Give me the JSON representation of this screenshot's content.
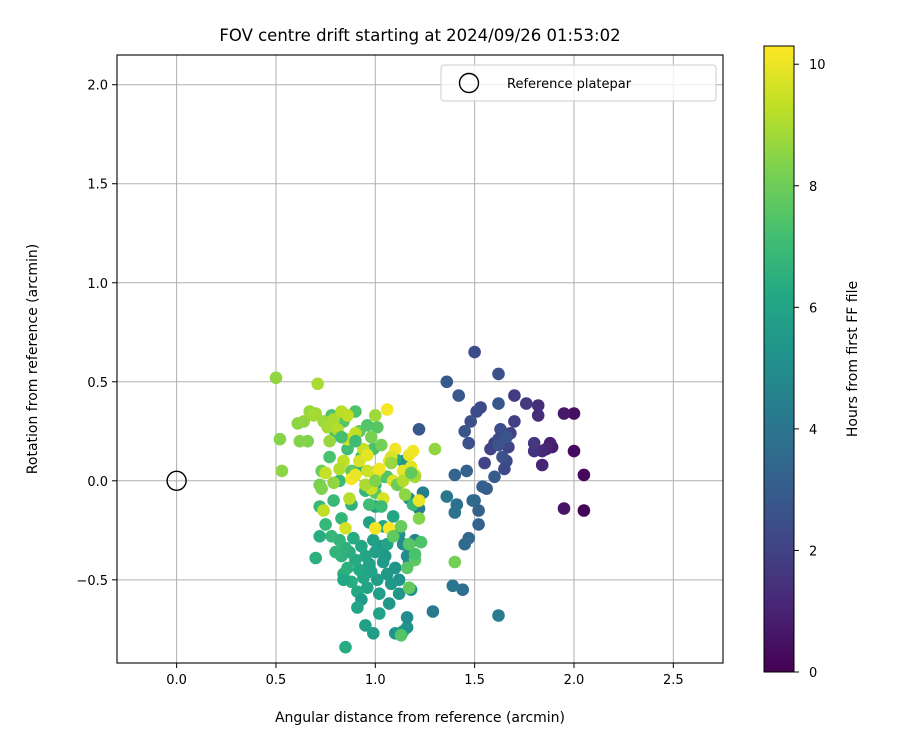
{
  "chart_data": {
    "type": "scatter",
    "title": "FOV centre drift starting at 2024/09/26 01:53:02",
    "xlabel": "Angular distance from reference (arcmin)",
    "ylabel": "Rotation from reference (arcmin)",
    "xlim": [
      -0.3,
      2.75
    ],
    "ylim": [
      -0.92,
      2.15
    ],
    "xticks": [
      0.0,
      0.5,
      1.0,
      1.5,
      2.0,
      2.5
    ],
    "xtick_labels": [
      "0.0",
      "0.5",
      "1.0",
      "1.5",
      "2.0",
      "2.5"
    ],
    "yticks": [
      -0.5,
      0.0,
      0.5,
      1.0,
      1.5,
      2.0
    ],
    "ytick_labels": [
      "−0.5",
      "0.0",
      "0.5",
      "1.0",
      "1.5",
      "2.0"
    ],
    "grid": true,
    "legend": {
      "placement": "upper-right",
      "entries": [
        {
          "label": "Reference platepar",
          "marker": "open-circle"
        }
      ]
    },
    "reference_point": {
      "x": 0.0,
      "y": 0.0
    },
    "colorbar": {
      "label": "Hours from first FF file",
      "colormap": "viridis",
      "range": [
        0,
        10.3
      ],
      "ticks": [
        0,
        2,
        4,
        6,
        8,
        10
      ],
      "tick_labels": [
        "0",
        "2",
        "4",
        "6",
        "8",
        "10"
      ]
    },
    "points": [
      [
        2.05,
        -0.15,
        0.1
      ],
      [
        2.05,
        0.03,
        0.2
      ],
      [
        2.0,
        0.15,
        0.3
      ],
      [
        2.0,
        0.34,
        0.4
      ],
      [
        1.95,
        -0.14,
        0.6
      ],
      [
        1.95,
        0.34,
        0.7
      ],
      [
        1.89,
        0.17,
        0.8
      ],
      [
        1.88,
        0.19,
        0.9
      ],
      [
        1.86,
        0.16,
        1.0
      ],
      [
        1.84,
        0.08,
        1.1
      ],
      [
        1.84,
        0.15,
        1.2
      ],
      [
        1.82,
        0.33,
        1.3
      ],
      [
        1.82,
        0.38,
        1.4
      ],
      [
        1.8,
        0.15,
        1.5
      ],
      [
        1.8,
        0.19,
        1.6
      ],
      [
        1.76,
        0.39,
        1.7
      ],
      [
        1.7,
        0.43,
        1.8
      ],
      [
        1.7,
        0.3,
        1.9
      ],
      [
        1.68,
        0.24,
        2.0
      ],
      [
        1.67,
        0.17,
        2.1
      ],
      [
        1.66,
        0.1,
        2.2
      ],
      [
        1.65,
        0.06,
        2.3
      ],
      [
        1.63,
        0.26,
        2.4
      ],
      [
        1.62,
        0.54,
        2.5
      ],
      [
        1.6,
        0.19,
        1.9
      ],
      [
        1.58,
        0.16,
        2.0
      ],
      [
        1.55,
        0.09,
        2.1
      ],
      [
        1.53,
        0.37,
        2.2
      ],
      [
        1.51,
        0.35,
        2.3
      ],
      [
        1.5,
        0.65,
        2.4
      ],
      [
        1.48,
        0.3,
        2.5
      ],
      [
        1.47,
        0.19,
        2.6
      ],
      [
        1.45,
        0.25,
        2.7
      ],
      [
        1.42,
        0.43,
        2.8
      ],
      [
        1.36,
        0.5,
        2.9
      ],
      [
        1.62,
        0.21,
        2.3
      ],
      [
        1.64,
        0.12,
        2.5
      ],
      [
        1.66,
        0.22,
        2.7
      ],
      [
        1.62,
        0.39,
        2.8
      ],
      [
        1.56,
        -0.04,
        3.0
      ],
      [
        1.54,
        -0.03,
        3.1
      ],
      [
        1.52,
        -0.15,
        3.2
      ],
      [
        1.52,
        -0.22,
        3.3
      ],
      [
        1.49,
        -0.1,
        3.4
      ],
      [
        1.47,
        -0.29,
        3.5
      ],
      [
        1.45,
        -0.32,
        3.6
      ],
      [
        1.44,
        -0.55,
        3.7
      ],
      [
        1.41,
        -0.12,
        3.8
      ],
      [
        1.4,
        -0.16,
        3.9
      ],
      [
        1.39,
        -0.53,
        4.0
      ],
      [
        1.36,
        -0.08,
        4.1
      ],
      [
        1.29,
        -0.66,
        4.2
      ],
      [
        1.24,
        -0.06,
        4.3
      ],
      [
        1.22,
        -0.14,
        4.4
      ],
      [
        1.22,
        0.26,
        2.8
      ],
      [
        1.6,
        0.02,
        3.0
      ],
      [
        1.62,
        -0.68,
        4.3
      ],
      [
        1.46,
        0.05,
        3.2
      ],
      [
        1.5,
        -0.1,
        3.5
      ],
      [
        1.4,
        0.03,
        3.3
      ],
      [
        1.62,
        0.18,
        2.6
      ],
      [
        1.2,
        -0.3,
        4.6
      ],
      [
        1.17,
        -0.41,
        4.8
      ],
      [
        1.16,
        -0.38,
        5.0
      ],
      [
        1.14,
        -0.32,
        5.0
      ],
      [
        1.12,
        -0.27,
        5.1
      ],
      [
        1.12,
        -0.5,
        5.2
      ],
      [
        1.1,
        -0.44,
        5.3
      ],
      [
        1.08,
        -0.52,
        5.4
      ],
      [
        1.06,
        -0.47,
        5.5
      ],
      [
        1.05,
        -0.38,
        5.5
      ],
      [
        1.04,
        -0.41,
        5.6
      ],
      [
        1.03,
        -0.33,
        5.6
      ],
      [
        1.02,
        -0.57,
        5.7
      ],
      [
        1.01,
        -0.5,
        5.7
      ],
      [
        1.0,
        -0.36,
        5.8
      ],
      [
        0.99,
        -0.3,
        5.8
      ],
      [
        0.98,
        -0.46,
        5.9
      ],
      [
        0.97,
        -0.42,
        5.9
      ],
      [
        0.96,
        -0.54,
        6.0
      ],
      [
        0.95,
        -0.38,
        6.0
      ],
      [
        0.94,
        -0.49,
        6.1
      ],
      [
        0.93,
        -0.33,
        6.1
      ],
      [
        0.92,
        -0.45,
        6.2
      ],
      [
        0.91,
        -0.56,
        6.2
      ],
      [
        0.9,
        -0.4,
        6.3
      ],
      [
        0.89,
        -0.29,
        6.3
      ],
      [
        0.88,
        -0.51,
        6.4
      ],
      [
        0.87,
        -0.36,
        6.4
      ],
      [
        0.86,
        -0.44,
        6.5
      ],
      [
        0.85,
        -0.34,
        6.5
      ],
      [
        0.84,
        -0.47,
        6.6
      ],
      [
        0.83,
        -0.38,
        6.6
      ],
      [
        0.82,
        -0.3,
        6.7
      ],
      [
        0.8,
        -0.36,
        6.7
      ],
      [
        0.78,
        -0.28,
        6.8
      ],
      [
        0.75,
        -0.22,
        6.8
      ],
      [
        0.72,
        -0.13,
        6.9
      ],
      [
        0.7,
        -0.39,
        6.5
      ],
      [
        0.72,
        -0.28,
        6.4
      ],
      [
        0.93,
        -0.6,
        5.6
      ],
      [
        0.95,
        -0.73,
        5.8
      ],
      [
        0.99,
        -0.77,
        5.7
      ],
      [
        1.02,
        -0.67,
        5.9
      ],
      [
        1.07,
        -0.62,
        5.4
      ],
      [
        1.1,
        -0.77,
        5.3
      ],
      [
        1.14,
        -0.76,
        5.6
      ],
      [
        1.16,
        -0.74,
        5.2
      ],
      [
        1.16,
        -0.69,
        5.0
      ],
      [
        1.18,
        -0.55,
        5.2
      ],
      [
        1.17,
        -0.09,
        4.8
      ],
      [
        0.85,
        -0.84,
        6.3
      ],
      [
        0.91,
        -0.64,
        6.0
      ],
      [
        0.97,
        -0.21,
        5.8
      ],
      [
        1.04,
        -0.23,
        6.2
      ],
      [
        1.06,
        -0.32,
        6.0
      ],
      [
        0.88,
        -0.12,
        6.6
      ],
      [
        0.84,
        -0.5,
        6.2
      ],
      [
        1.12,
        -0.57,
        5.4
      ],
      [
        1.0,
        -0.13,
        6.0
      ],
      [
        0.79,
        -0.1,
        6.9
      ],
      [
        1.14,
        0.1,
        5.2
      ],
      [
        1.09,
        -0.18,
        6.1
      ],
      [
        0.83,
        -0.19,
        6.7
      ],
      [
        0.95,
        -0.05,
        6.8
      ],
      [
        1.05,
        0.02,
        6.2
      ],
      [
        1.19,
        -0.12,
        6.9
      ],
      [
        1.1,
        0.11,
        6.3
      ],
      [
        1.0,
        -0.02,
        6.4
      ],
      [
        0.92,
        0.06,
        6.5
      ],
      [
        0.82,
        0.0,
        6.9
      ],
      [
        0.93,
        0.12,
        7.0
      ],
      [
        0.86,
        0.16,
        7.1
      ],
      [
        0.8,
        0.23,
        7.2
      ],
      [
        0.77,
        0.12,
        7.3
      ],
      [
        0.78,
        0.33,
        7.4
      ],
      [
        0.84,
        0.3,
        7.5
      ],
      [
        0.9,
        0.35,
        7.4
      ],
      [
        0.99,
        0.16,
        7.3
      ],
      [
        1.01,
        0.05,
        7.2
      ],
      [
        1.06,
        0.02,
        7.5
      ],
      [
        1.17,
        -0.32,
        7.6
      ],
      [
        1.2,
        -0.4,
        7.7
      ],
      [
        1.17,
        -0.54,
        7.8
      ],
      [
        1.23,
        -0.31,
        7.4
      ],
      [
        1.13,
        -0.78,
        7.5
      ],
      [
        1.0,
        -0.06,
        7.6
      ],
      [
        1.01,
        0.27,
        7.6
      ],
      [
        0.92,
        0.25,
        7.7
      ],
      [
        0.88,
        0.05,
        7.8
      ],
      [
        0.73,
        0.05,
        8.0
      ],
      [
        0.72,
        -0.02,
        8.2
      ],
      [
        0.73,
        -0.04,
        8.3
      ],
      [
        0.66,
        0.2,
        8.3
      ],
      [
        0.62,
        0.2,
        8.4
      ],
      [
        0.61,
        0.29,
        8.5
      ],
      [
        0.52,
        0.21,
        8.4
      ],
      [
        0.53,
        0.05,
        8.5
      ],
      [
        0.5,
        0.52,
        8.6
      ],
      [
        0.64,
        0.3,
        8.6
      ],
      [
        0.67,
        0.35,
        8.7
      ],
      [
        0.7,
        0.34,
        8.8
      ],
      [
        0.74,
        0.3,
        8.8
      ],
      [
        0.76,
        0.27,
        8.9
      ],
      [
        0.79,
        0.31,
        9.0
      ],
      [
        0.81,
        0.26,
        9.1
      ],
      [
        0.83,
        0.35,
        9.2
      ],
      [
        0.86,
        0.33,
        9.3
      ],
      [
        0.9,
        0.24,
        9.3
      ],
      [
        0.94,
        0.16,
        9.4
      ],
      [
        0.96,
        0.05,
        9.5
      ],
      [
        0.98,
        -0.04,
        9.5
      ],
      [
        1.0,
        0.03,
        9.6
      ],
      [
        1.04,
        -0.09,
        9.7
      ],
      [
        1.07,
        0.1,
        9.8
      ],
      [
        1.09,
        0.0,
        9.8
      ],
      [
        1.12,
        -0.02,
        9.8
      ],
      [
        1.14,
        0.05,
        9.9
      ],
      [
        1.18,
        0.07,
        9.9
      ],
      [
        1.17,
        0.13,
        10.0
      ],
      [
        1.2,
        0.03,
        9.9
      ],
      [
        1.22,
        -0.1,
        10.0
      ],
      [
        1.19,
        0.15,
        10.1
      ],
      [
        1.1,
        0.16,
        10.1
      ],
      [
        1.06,
        0.36,
        10.2
      ],
      [
        1.0,
        -0.24,
        10.1
      ],
      [
        1.07,
        -0.24,
        10.2
      ],
      [
        0.88,
        0.01,
        10.2
      ],
      [
        0.9,
        0.03,
        10.0
      ],
      [
        0.92,
        0.1,
        9.7
      ],
      [
        0.96,
        0.13,
        9.9
      ],
      [
        1.02,
        0.06,
        10.1
      ],
      [
        1.08,
        0.12,
        9.7
      ],
      [
        0.86,
        0.21,
        9.5
      ],
      [
        0.84,
        0.1,
        9.3
      ],
      [
        0.82,
        0.06,
        9.1
      ],
      [
        0.77,
        0.2,
        8.7
      ],
      [
        0.71,
        0.49,
        9.0
      ],
      [
        0.69,
        0.33,
        8.9
      ],
      [
        0.75,
        0.04,
        9.4
      ],
      [
        0.79,
        -0.01,
        8.6
      ],
      [
        0.98,
        0.22,
        8.2
      ],
      [
        1.03,
        0.18,
        8.1
      ],
      [
        1.11,
        -0.02,
        8.0
      ],
      [
        1.14,
        0.0,
        9.1
      ],
      [
        1.15,
        -0.07,
        8.5
      ],
      [
        1.08,
        0.09,
        8.7
      ],
      [
        1.3,
        0.16,
        8.6
      ],
      [
        1.2,
        0.02,
        8.9
      ],
      [
        1.0,
        0.33,
        8.8
      ],
      [
        0.85,
        -0.24,
        9.6
      ],
      [
        0.87,
        -0.09,
        9.2
      ],
      [
        0.95,
        -0.02,
        9.0
      ],
      [
        1.0,
        0.0,
        8.3
      ],
      [
        0.74,
        -0.15,
        9.3
      ],
      [
        1.22,
        -0.19,
        8.4
      ],
      [
        1.16,
        -0.44,
        7.6
      ],
      [
        1.2,
        -0.37,
        7.3
      ],
      [
        1.4,
        -0.41,
        8.1
      ],
      [
        1.13,
        -0.23,
        7.9
      ],
      [
        1.09,
        -0.28,
        7.7
      ],
      [
        1.18,
        0.04,
        7.8
      ],
      [
        0.96,
        0.28,
        7.5
      ],
      [
        0.9,
        0.2,
        7.0
      ],
      [
        0.83,
        0.22,
        7.2
      ],
      [
        0.97,
        -0.12,
        7.1
      ],
      [
        1.03,
        -0.13,
        7.0
      ]
    ]
  }
}
